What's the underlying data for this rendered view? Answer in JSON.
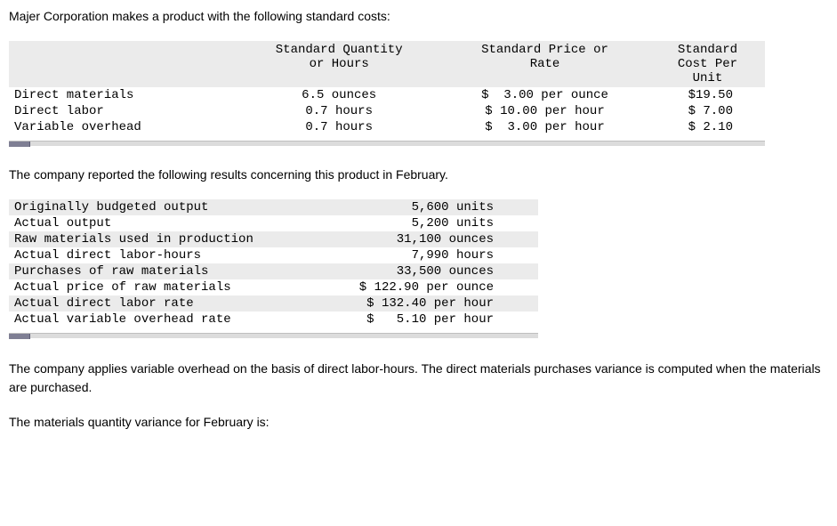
{
  "intro": "Majer Corporation makes a product with the following standard costs:",
  "headers": {
    "qty_l1": "Standard Quantity",
    "qty_l2": "or Hours",
    "rate_l1": "Standard Price or",
    "rate_l2": "Rate",
    "cost_l1": "Standard",
    "cost_l2": "Cost Per",
    "cost_l3": "Unit"
  },
  "t1": {
    "rows": [
      {
        "label": "Direct materials",
        "qty": "6.5 ounces",
        "rate": "$  3.00 per ounce",
        "cost": "$19.50"
      },
      {
        "label": "Direct labor",
        "qty": "0.7 hours",
        "rate": "$ 10.00 per hour",
        "cost": "$ 7.00"
      },
      {
        "label": "Variable overhead",
        "qty": "0.7 hours",
        "rate": "$  3.00 per hour",
        "cost": "$ 2.10"
      }
    ]
  },
  "mid_para": "The company reported the following results concerning this product in February.",
  "t2": {
    "rows": [
      {
        "label": "Originally budgeted output",
        "val": "5,600 units"
      },
      {
        "label": "Actual output",
        "val": "5,200 units"
      },
      {
        "label": "Raw materials used in production",
        "val": "31,100 ounces"
      },
      {
        "label": "Actual direct labor-hours",
        "val": "7,990 hours"
      },
      {
        "label": "Purchases of raw materials",
        "val": "33,500 ounces"
      },
      {
        "label": "Actual price of raw materials",
        "val": "$ 122.90 per ounce"
      },
      {
        "label": "Actual direct labor rate",
        "val": "$ 132.40 per hour"
      },
      {
        "label": "Actual variable overhead rate",
        "val": "$   5.10 per hour"
      }
    ]
  },
  "bottom1": "The company applies variable overhead on the basis of direct labor-hours. The direct materials purchases variance is computed when the materials are purchased.",
  "bottom2": "The materials quantity variance for February is:"
}
